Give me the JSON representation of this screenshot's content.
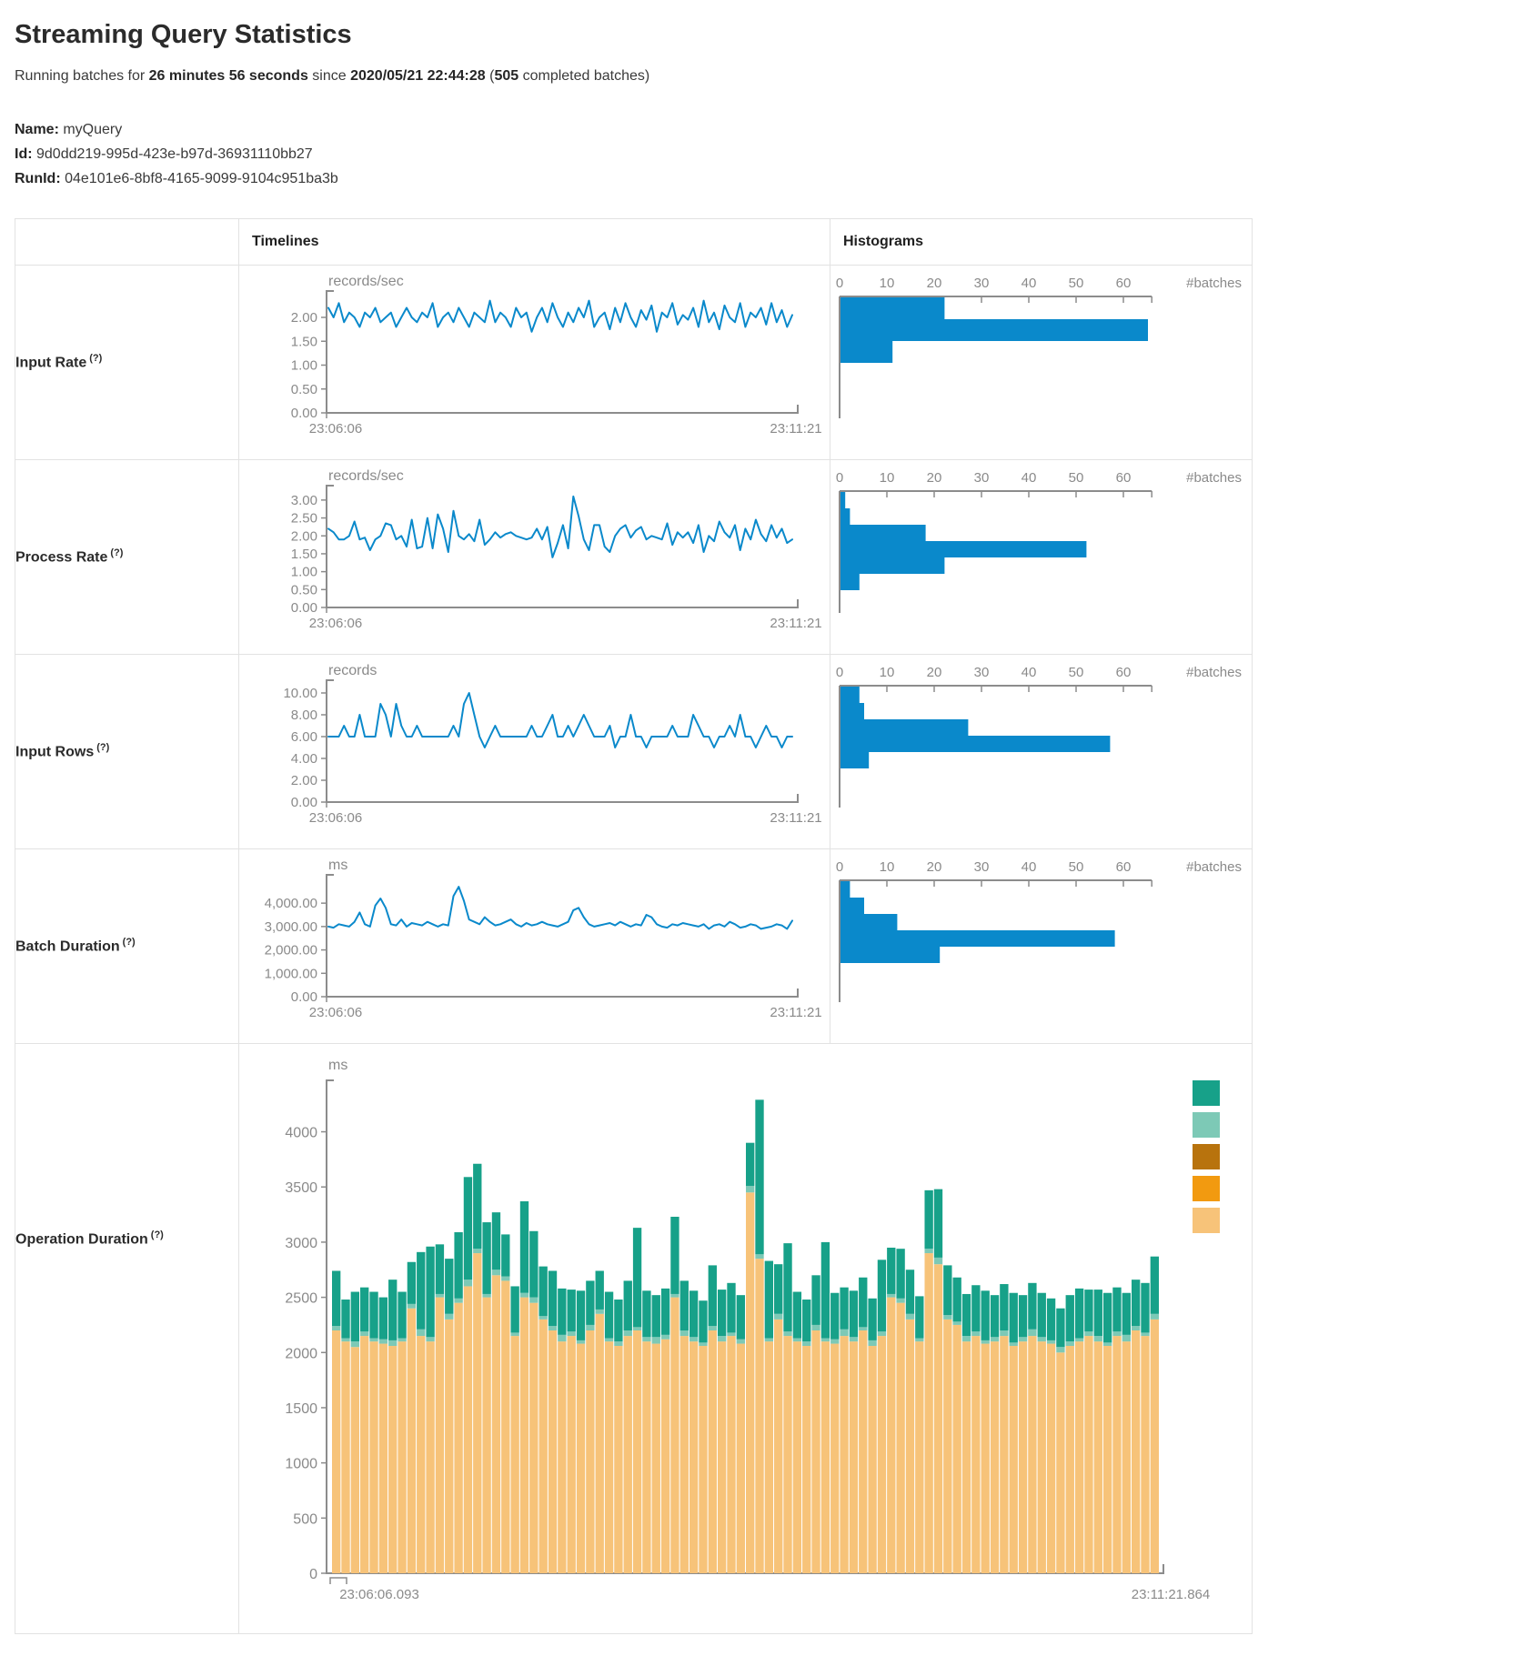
{
  "header": {
    "title": "Streaming Query Statistics"
  },
  "subtitle": {
    "p1": "Running batches for ",
    "duration": "26 minutes 56 seconds",
    "p2": " since ",
    "timestamp": "2020/05/21 22:44:28",
    "p3": " (",
    "count": "505",
    "p4": " completed batches)"
  },
  "query_info": {
    "name_label": "Name:",
    "name": " myQuery",
    "id_label": "Id:",
    "id": " 9d0dd219-995d-423e-b97d-36931110bb27",
    "runid_label": "RunId:",
    "runid": " 04e101e6-8bf8-4165-9099-9104c951ba3b"
  },
  "table": {
    "headers": [
      "",
      "Timelines",
      "Histograms"
    ]
  },
  "rows": [
    {
      "label": "Input Rate",
      "help": "(?)",
      "type": "line-hist"
    },
    {
      "label": "Process Rate",
      "help": "(?)",
      "type": "line-hist"
    },
    {
      "label": "Input Rows",
      "help": "(?)",
      "type": "line-hist"
    },
    {
      "label": "Batch Duration",
      "help": "(?)",
      "type": "line-hist"
    },
    {
      "label": "Operation Duration",
      "help": "(?)",
      "type": "stacked"
    }
  ],
  "colors": {
    "line": "#0a89cb",
    "histogram_bar": "#0a89cb",
    "axis": "#8c8c8c",
    "tick_label": "#8a8a8a",
    "border": "#e2e2e2",
    "stack_teal": "#17a189",
    "stack_light_teal": "#7dc9b6",
    "stack_brown": "#b8730d",
    "stack_orange": "#f29a10",
    "stack_tan": "#f7c379"
  },
  "chart_data": [
    {
      "type": "line",
      "row": "Input Rate",
      "unit": "records/sec",
      "x_start": "23:06:06",
      "x_end": "23:11:21",
      "ylim": [
        0,
        2.4
      ],
      "ytick_values": [
        0,
        0.5,
        1,
        1.5,
        2
      ],
      "ytick_labels": [
        "0.00",
        "0.50",
        "1.00",
        "1.50",
        "2.00"
      ],
      "values": [
        2.2,
        2.0,
        2.3,
        1.9,
        2.1,
        2.0,
        1.8,
        2.1,
        2.0,
        2.2,
        1.9,
        2.0,
        2.1,
        1.8,
        2.0,
        2.2,
        2.0,
        1.9,
        2.1,
        2.0,
        2.3,
        1.8,
        2.0,
        2.1,
        1.9,
        2.2,
        2.0,
        1.8,
        2.1,
        2.0,
        1.9,
        2.35,
        1.9,
        2.1,
        2.0,
        1.8,
        2.2,
        2.0,
        2.1,
        1.7,
        2.0,
        2.2,
        1.9,
        2.3,
        2.0,
        1.8,
        2.1,
        1.9,
        2.2,
        2.0,
        2.35,
        1.8,
        2.0,
        2.1,
        1.75,
        2.2,
        1.9,
        2.3,
        2.0,
        1.8,
        2.15,
        1.95,
        2.25,
        1.7,
        2.1,
        2.0,
        2.3,
        1.85,
        2.05,
        1.95,
        2.2,
        1.8,
        2.35,
        1.9,
        2.1,
        1.75,
        2.25,
        2.0,
        1.9,
        2.3,
        1.8,
        2.1,
        2.0,
        2.2,
        1.85,
        2.3,
        1.9,
        2.15,
        1.8,
        2.05
      ]
    },
    {
      "type": "bar",
      "row": "Input Rate",
      "orientation": "horizontal",
      "xlabel": "#batches",
      "xlim": [
        0,
        66
      ],
      "xtick_values": [
        0,
        10,
        20,
        30,
        40,
        50,
        60
      ],
      "xtick_labels": [
        "0",
        "10",
        "20",
        "30",
        "40",
        "50",
        "60"
      ],
      "values": [
        22,
        65,
        11
      ]
    },
    {
      "type": "line",
      "row": "Process Rate",
      "unit": "records/sec",
      "x_start": "23:06:06",
      "x_end": "23:11:21",
      "ylim": [
        0,
        3.2
      ],
      "ytick_values": [
        0,
        0.5,
        1,
        1.5,
        2,
        2.5,
        3
      ],
      "ytick_labels": [
        "0.00",
        "0.50",
        "1.00",
        "1.50",
        "2.00",
        "2.50",
        "3.00"
      ],
      "values": [
        2.2,
        2.1,
        1.9,
        1.9,
        2.0,
        2.4,
        1.9,
        1.95,
        1.6,
        1.9,
        2.0,
        2.35,
        2.3,
        1.9,
        2.0,
        1.7,
        2.45,
        1.65,
        1.7,
        2.5,
        1.65,
        2.6,
        2.2,
        1.55,
        2.7,
        2.0,
        1.9,
        2.05,
        1.85,
        2.45,
        1.75,
        1.9,
        2.1,
        1.95,
        2.05,
        2.1,
        2.0,
        1.95,
        1.9,
        1.95,
        2.2,
        1.9,
        2.25,
        1.4,
        1.8,
        2.3,
        1.65,
        3.1,
        2.55,
        1.9,
        1.6,
        2.3,
        2.3,
        1.7,
        1.55,
        2.0,
        2.2,
        2.3,
        1.95,
        2.15,
        2.25,
        1.9,
        2.0,
        1.95,
        1.9,
        2.35,
        1.75,
        2.1,
        1.95,
        2.1,
        1.8,
        2.3,
        1.55,
        2.0,
        1.85,
        2.4,
        2.1,
        1.95,
        2.3,
        1.6,
        2.2,
        1.9,
        2.45,
        2.05,
        1.85,
        2.3,
        1.95,
        2.2,
        1.8,
        1.9
      ]
    },
    {
      "type": "bar",
      "row": "Process Rate",
      "orientation": "horizontal",
      "xlabel": "#batches",
      "xlim": [
        0,
        66
      ],
      "xtick_values": [
        0,
        10,
        20,
        30,
        40,
        50,
        60
      ],
      "xtick_labels": [
        "0",
        "10",
        "20",
        "30",
        "40",
        "50",
        "60"
      ],
      "values": [
        1,
        2,
        18,
        52,
        22,
        4
      ]
    },
    {
      "type": "line",
      "row": "Input Rows",
      "unit": "records",
      "x_start": "23:06:06",
      "x_end": "23:11:21",
      "ylim": [
        0,
        10.5
      ],
      "ytick_values": [
        0,
        2,
        4,
        6,
        8,
        10
      ],
      "ytick_labels": [
        "0.00",
        "2.00",
        "4.00",
        "6.00",
        "8.00",
        "10.00"
      ],
      "values": [
        6,
        6,
        6,
        7,
        6,
        6,
        8,
        6,
        6,
        6,
        9,
        8,
        6,
        9,
        7,
        6,
        6,
        7,
        6,
        6,
        6,
        6,
        6,
        6,
        7,
        6,
        9,
        10,
        8,
        6,
        5,
        6,
        7,
        6,
        6,
        6,
        6,
        6,
        6,
        7,
        6,
        6,
        7,
        8,
        6,
        6,
        7,
        6,
        7,
        8,
        7,
        6,
        6,
        6,
        7,
        5,
        6,
        6,
        8,
        6,
        6,
        5,
        6,
        6,
        6,
        6,
        7,
        6,
        6,
        6,
        8,
        7,
        6,
        6,
        5,
        6,
        6,
        7,
        6,
        8,
        6,
        6,
        5,
        6,
        7,
        6,
        6,
        5,
        6,
        6
      ]
    },
    {
      "type": "bar",
      "row": "Input Rows",
      "orientation": "horizontal",
      "xlabel": "#batches",
      "xlim": [
        0,
        66
      ],
      "xtick_values": [
        0,
        10,
        20,
        30,
        40,
        50,
        60
      ],
      "xtick_labels": [
        "0",
        "10",
        "20",
        "30",
        "40",
        "50",
        "60"
      ],
      "values": [
        4,
        5,
        27,
        57,
        6
      ]
    },
    {
      "type": "line",
      "row": "Batch Duration",
      "unit": "ms",
      "x_start": "23:06:06",
      "x_end": "23:11:21",
      "ylim": [
        0,
        4900
      ],
      "ytick_values": [
        0,
        1000,
        2000,
        3000,
        4000
      ],
      "ytick_labels": [
        "0.00",
        "1,000.00",
        "2,000.00",
        "3,000.00",
        "4,000.00"
      ],
      "values": [
        3000,
        2950,
        3100,
        3050,
        3000,
        3200,
        3600,
        3100,
        3000,
        3900,
        4200,
        3800,
        3100,
        3050,
        3300,
        3000,
        3150,
        3100,
        3050,
        3200,
        3100,
        3000,
        3100,
        3050,
        4300,
        4700,
        4100,
        3300,
        3200,
        3100,
        3400,
        3200,
        3050,
        3100,
        3200,
        3300,
        3100,
        3000,
        3150,
        3050,
        3100,
        3200,
        3100,
        3050,
        3000,
        3100,
        3200,
        3700,
        3800,
        3400,
        3100,
        3000,
        3050,
        3100,
        3150,
        3050,
        3200,
        3100,
        3000,
        3100,
        3050,
        3500,
        3400,
        3100,
        3000,
        2950,
        3100,
        3050,
        3150,
        3100,
        3050,
        3000,
        3100,
        2900,
        3050,
        3100,
        3000,
        3200,
        3100,
        2950,
        3000,
        3100,
        3050,
        2900,
        2950,
        3000,
        3100,
        3050,
        2900,
        3250
      ]
    },
    {
      "type": "bar",
      "row": "Batch Duration",
      "orientation": "horizontal",
      "xlabel": "#batches",
      "xlim": [
        0,
        66
      ],
      "xtick_values": [
        0,
        10,
        20,
        30,
        40,
        50,
        60
      ],
      "xtick_labels": [
        "0",
        "10",
        "20",
        "30",
        "40",
        "50",
        "60"
      ],
      "values": [
        2,
        5,
        12,
        58,
        21
      ]
    },
    {
      "type": "bar",
      "row": "Operation Duration",
      "stacked": true,
      "unit": "ms",
      "x_start": "23:06:06.093",
      "x_end": "23:11:21.864",
      "ylim": [
        0,
        4400
      ],
      "ytick_values": [
        0,
        500,
        1000,
        1500,
        2000,
        2500,
        3000,
        3500,
        4000
      ],
      "ytick_labels": [
        "0",
        "500",
        "1000",
        "1500",
        "2000",
        "2500",
        "3000",
        "3500",
        "4000"
      ],
      "legend_colors": [
        "#17a189",
        "#7dc9b6",
        "#b8730d",
        "#f29a10",
        "#f7c379"
      ],
      "series": [
        {
          "name": "bottom-tan",
          "color": "#f7c379",
          "values": [
            2200,
            2100,
            2050,
            2150,
            2100,
            2080,
            2060,
            2100,
            2400,
            2150,
            2100,
            2500,
            2300,
            2450,
            2600,
            2900,
            2500,
            2700,
            2650,
            2150,
            2500,
            2450,
            2300,
            2200,
            2100,
            2150,
            2080,
            2200,
            2350,
            2100,
            2060,
            2150,
            2200,
            2100,
            2080,
            2120,
            2500,
            2150,
            2100,
            2060,
            2200,
            2100,
            2150,
            2080,
            3450,
            2850,
            2100,
            2300,
            2150,
            2100,
            2060,
            2200,
            2100,
            2080,
            2150,
            2100,
            2200,
            2060,
            2150,
            2500,
            2450,
            2300,
            2100,
            2900,
            2800,
            2300,
            2250,
            2100,
            2150,
            2080,
            2100,
            2150,
            2060,
            2100,
            2150,
            2100,
            2080,
            2000,
            2060,
            2100,
            2150,
            2100,
            2060,
            2150,
            2100,
            2200,
            2150,
            2300
          ]
        },
        {
          "name": "middle-light-teal",
          "color": "#7dc9b6",
          "values": [
            40,
            30,
            50,
            40,
            30,
            40,
            50,
            30,
            40,
            60,
            40,
            30,
            50,
            40,
            60,
            40,
            30,
            50,
            40,
            30,
            40,
            50,
            30,
            40,
            60,
            40,
            30,
            50,
            40,
            30,
            40,
            50,
            30,
            40,
            60,
            40,
            30,
            50,
            40,
            30,
            40,
            50,
            30,
            40,
            60,
            40,
            30,
            50,
            40,
            30,
            40,
            50,
            30,
            40,
            60,
            40,
            30,
            50,
            40,
            30,
            40,
            50,
            30,
            40,
            60,
            40,
            30,
            50,
            40,
            30,
            40,
            50,
            30,
            40,
            60,
            40,
            30,
            50,
            40,
            30,
            40,
            50,
            30,
            40,
            60,
            40,
            30,
            50
          ]
        },
        {
          "name": "top-teal",
          "color": "#17a189",
          "values": [
            500,
            350,
            450,
            400,
            420,
            380,
            550,
            420,
            380,
            700,
            820,
            450,
            500,
            600,
            930,
            770,
            650,
            520,
            380,
            420,
            830,
            600,
            450,
            500,
            420,
            380,
            450,
            400,
            350,
            420,
            380,
            450,
            900,
            420,
            380,
            420,
            700,
            450,
            420,
            380,
            550,
            420,
            450,
            400,
            390,
            1400,
            700,
            450,
            800,
            420,
            380,
            450,
            870,
            420,
            380,
            420,
            450,
            380,
            650,
            420,
            450,
            400,
            380,
            530,
            620,
            450,
            400,
            380,
            420,
            450,
            380,
            420,
            450,
            380,
            420,
            400,
            380,
            350,
            420,
            450,
            380,
            420,
            450,
            400,
            380,
            420,
            450,
            520
          ]
        }
      ]
    }
  ]
}
